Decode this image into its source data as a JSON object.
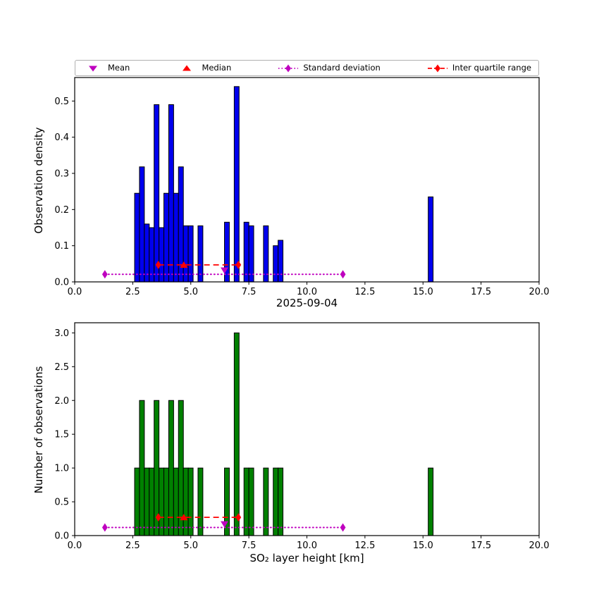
{
  "figure": {
    "title": "2025-09-04",
    "xlabel": "SO₂ layer height [km]",
    "background": "#ffffff",
    "legend": [
      {
        "label": "Mean",
        "marker": "triangle-down",
        "color": "#bf00bf",
        "line": "none"
      },
      {
        "label": "Median",
        "marker": "triangle-up",
        "color": "#ff0000",
        "line": "none"
      },
      {
        "label": "Standard deviation",
        "marker": "diamond",
        "color": "#bf00bf",
        "line": "dotted"
      },
      {
        "label": "Inter quartile range",
        "marker": "diamond",
        "color": "#ff0000",
        "line": "dashed"
      }
    ]
  },
  "chart_data": [
    {
      "type": "bar",
      "name": "observation-density-histogram",
      "ylabel": "Observation density",
      "bar_color": "#0000ee",
      "bar_edge_color": "#000000",
      "xlim": [
        0,
        20
      ],
      "ylim": [
        0,
        0.565
      ],
      "xticks": [
        0,
        2.5,
        5,
        7.5,
        10,
        12.5,
        15,
        17.5,
        20
      ],
      "yticks": [
        0,
        0.1,
        0.2,
        0.3,
        0.4,
        0.5
      ],
      "bin_width": 0.21,
      "bars_format": "[bin_center_km, density]",
      "bars": [
        [
          2.685,
          0.245
        ],
        [
          2.895,
          0.318
        ],
        [
          3.105,
          0.16
        ],
        [
          3.315,
          0.15
        ],
        [
          3.525,
          0.49
        ],
        [
          3.735,
          0.15
        ],
        [
          3.945,
          0.245
        ],
        [
          4.155,
          0.49
        ],
        [
          4.365,
          0.245
        ],
        [
          4.575,
          0.318
        ],
        [
          4.785,
          0.155
        ],
        [
          4.995,
          0.155
        ],
        [
          5.415,
          0.155
        ],
        [
          6.555,
          0.165
        ],
        [
          6.975,
          0.54
        ],
        [
          7.395,
          0.165
        ],
        [
          7.605,
          0.155
        ],
        [
          8.235,
          0.155
        ],
        [
          8.655,
          0.1
        ],
        [
          8.865,
          0.115
        ],
        [
          15.33,
          0.235
        ]
      ],
      "overlays": {
        "std": {
          "y": 0.021,
          "x1": 1.3,
          "x2": 11.55,
          "color": "#bf00bf",
          "style": "dotted"
        },
        "iqr": {
          "y": 0.047,
          "x1": 3.6,
          "x2": 7.05,
          "color": "#ff0000",
          "style": "dashed"
        },
        "mean": {
          "x": 6.45,
          "y": 0.032,
          "color": "#bf00bf"
        },
        "median": {
          "x": 4.7,
          "y": 0.047,
          "color": "#ff0000"
        }
      }
    },
    {
      "type": "bar",
      "name": "observation-count-histogram",
      "ylabel": "Number of observations",
      "bar_color": "#008000",
      "bar_edge_color": "#000000",
      "xlim": [
        0,
        20
      ],
      "ylim": [
        0,
        3.15
      ],
      "xticks": [
        0,
        2.5,
        5,
        7.5,
        10,
        12.5,
        15,
        17.5,
        20
      ],
      "yticks": [
        0,
        0.5,
        1,
        1.5,
        2,
        2.5,
        3
      ],
      "bin_width": 0.21,
      "bars_format": "[bin_center_km, count]",
      "bars": [
        [
          2.685,
          1
        ],
        [
          2.895,
          2
        ],
        [
          3.105,
          1
        ],
        [
          3.315,
          1
        ],
        [
          3.525,
          2
        ],
        [
          3.735,
          1
        ],
        [
          3.945,
          1
        ],
        [
          4.155,
          2
        ],
        [
          4.365,
          1
        ],
        [
          4.575,
          2
        ],
        [
          4.785,
          1
        ],
        [
          4.995,
          1
        ],
        [
          5.415,
          1
        ],
        [
          6.555,
          1
        ],
        [
          6.975,
          3
        ],
        [
          7.395,
          1
        ],
        [
          7.605,
          1
        ],
        [
          8.235,
          1
        ],
        [
          8.655,
          1
        ],
        [
          8.865,
          1
        ],
        [
          15.33,
          1
        ]
      ],
      "overlays": {
        "std": {
          "y": 0.12,
          "x1": 1.3,
          "x2": 11.55,
          "color": "#bf00bf",
          "style": "dotted"
        },
        "iqr": {
          "y": 0.27,
          "x1": 3.6,
          "x2": 7.05,
          "color": "#ff0000",
          "style": "dashed"
        },
        "mean": {
          "x": 6.45,
          "y": 0.17,
          "color": "#bf00bf"
        },
        "median": {
          "x": 4.7,
          "y": 0.27,
          "color": "#ff0000"
        }
      }
    }
  ]
}
